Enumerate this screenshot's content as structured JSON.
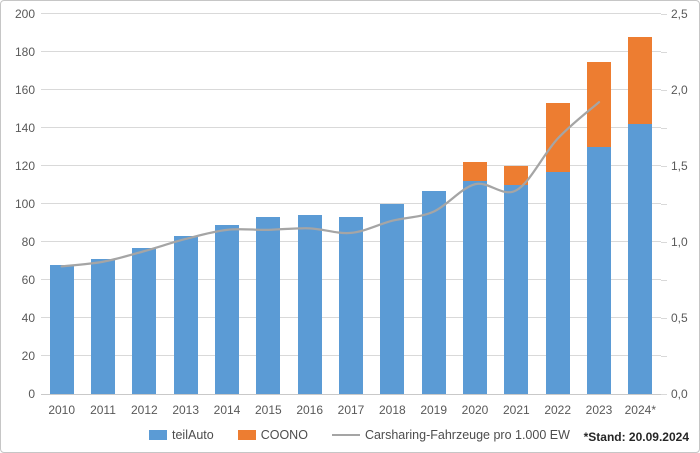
{
  "footnote": "*Stand: 20.09.2024",
  "colors": {
    "teilauto_blue": "#5B9BD5",
    "coono_orange": "#ED7D31",
    "line_gray": "#A5A5A5",
    "gridline": "#D9D9D9",
    "axis_text": "#595959"
  },
  "chart_data": {
    "type": "bar",
    "subtype": "stacked-columns-with-line",
    "title": "",
    "xlabel": "",
    "ylabel": "",
    "grid": true,
    "legend_position": "bottom",
    "categories": [
      "2010",
      "2011",
      "2012",
      "2013",
      "2014",
      "2015",
      "2016",
      "2017",
      "2018",
      "2019",
      "2020",
      "2021",
      "2022",
      "2023",
      "2024*"
    ],
    "series": [
      {
        "name": "teilAuto",
        "type": "bar",
        "stack": true,
        "color": "#5B9BD5",
        "axis": "left",
        "values": [
          68,
          71,
          77,
          83,
          89,
          93,
          94,
          93,
          100,
          107,
          112,
          110,
          117,
          130,
          142
        ]
      },
      {
        "name": "COONO",
        "type": "bar",
        "stack": true,
        "color": "#ED7D31",
        "axis": "left",
        "values": [
          0,
          0,
          0,
          0,
          0,
          0,
          0,
          0,
          0,
          0,
          10,
          10,
          36,
          45,
          46
        ]
      },
      {
        "name": "Carsharing-Fahrzeuge pro 1.000 EW",
        "type": "line",
        "color": "#A5A5A5",
        "axis": "right",
        "values": [
          0.84,
          0.87,
          0.94,
          1.02,
          1.08,
          1.08,
          1.09,
          1.06,
          1.14,
          1.2,
          1.38,
          1.34,
          1.68,
          1.92,
          null
        ]
      }
    ],
    "left_axis": {
      "min": 0,
      "max": 200,
      "step": 20,
      "tick_labels": [
        "0",
        "20",
        "40",
        "60",
        "80",
        "100",
        "120",
        "140",
        "160",
        "180",
        "200"
      ]
    },
    "right_axis": {
      "min": 0,
      "max": 2.5,
      "step": 0.5,
      "tick_labels": [
        "0,0",
        "0,5",
        "1,0",
        "1,5",
        "2,0",
        "2,5"
      ]
    }
  }
}
